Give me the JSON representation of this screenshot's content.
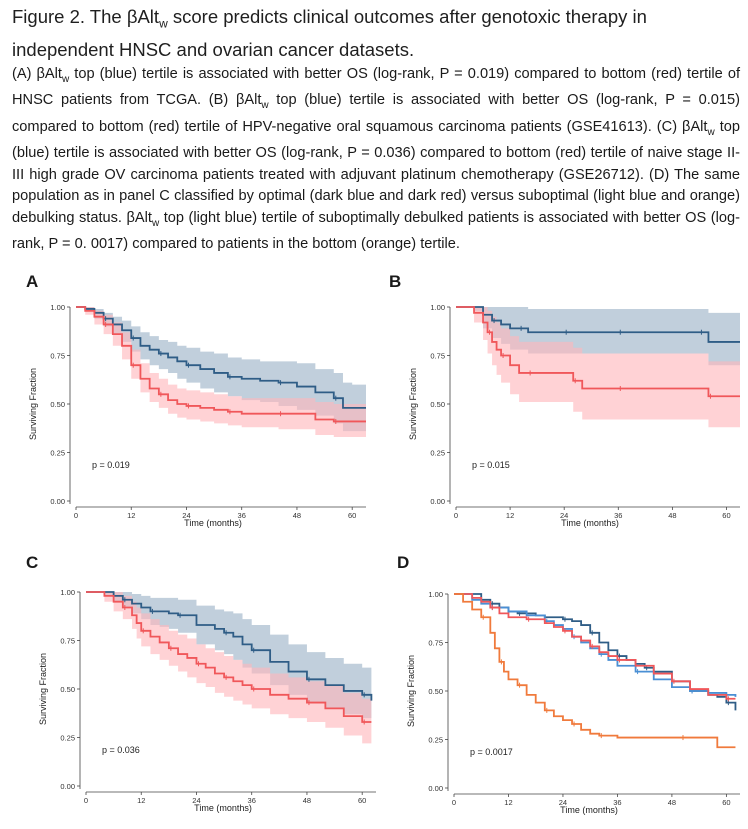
{
  "figure": {
    "title": "Figure 2. The βAltw score predicts clinical outcomes after genotoxic therapy in independent HNSC and ovarian cancer datasets.",
    "title_parts": {
      "pre": "Figure 2. The βAlt",
      "sub": "w",
      "post": " score predicts clinical outcomes after genotoxic therapy in independent HNSC and ovarian cancer datasets."
    },
    "caption_segments": [
      {
        "t": "(A) βAlt"
      },
      {
        "sub": "w"
      },
      {
        "t": " top (blue) tertile is associated with better OS (log-rank, P = 0.019) compared to bottom (red) tertile of HNSC patients from TCGA. (B) βAlt"
      },
      {
        "sub": "w"
      },
      {
        "t": " top (blue) tertile is associated with better OS (log-rank, P = 0.015) compared to bottom (red) tertile of HPV-negative oral squamous carcinoma patients (GSE41613). (C) βAlt"
      },
      {
        "sub": "w"
      },
      {
        "t": " top (blue) tertile is associated with better OS (log-rank, P = 0.036) compared to bottom (red) tertile of naive stage II-III high grade OV carcinoma patients treated with adjuvant platinum chemotherapy (GSE26712). (D) The same population as in panel C classified by optimal (dark blue and dark red) versus suboptimal (light blue and orange) debulking status. βAlt"
      },
      {
        "sub": "w"
      },
      {
        "t": " top (light blue) tertile of suboptimally debulked patients is associated with better OS (log-rank, P = 0. 0017)  compared to patients in the bottom (orange) tertile."
      }
    ]
  },
  "colors": {
    "dark_blue": "#2f5d86",
    "red": "#f0575a",
    "light_blue": "#4a8fd4",
    "orange": "#f07a3c",
    "blue_band": "#a9bccf",
    "red_band": "#ffb7bb"
  },
  "chart_data": [
    {
      "panel": "A",
      "type": "line",
      "xlabel": "Time (months)",
      "ylabel": "Surviving Fraction",
      "xlim": [
        0,
        63
      ],
      "ylim": [
        0,
        1
      ],
      "xticks": [
        "0",
        "12",
        "24",
        "36",
        "48",
        "60"
      ],
      "yticks": [
        "0.00",
        "0.25",
        "0.50",
        "0.75",
        "1.00"
      ],
      "annotation": "p = 0.019",
      "grid": false,
      "legend": "none",
      "series": [
        {
          "color": "#2f5d86",
          "band": true,
          "x": [
            0,
            2,
            4,
            6,
            8,
            10,
            12,
            14,
            16,
            18,
            20,
            22,
            24,
            27,
            30,
            33,
            36,
            40,
            44,
            48,
            52,
            56,
            58,
            60,
            63
          ],
          "y": [
            1.0,
            0.99,
            0.97,
            0.94,
            0.91,
            0.88,
            0.84,
            0.8,
            0.78,
            0.76,
            0.74,
            0.72,
            0.7,
            0.68,
            0.66,
            0.64,
            0.63,
            0.62,
            0.61,
            0.59,
            0.56,
            0.53,
            0.48,
            0.48,
            0.48
          ],
          "lower": [
            1.0,
            0.98,
            0.94,
            0.9,
            0.86,
            0.82,
            0.77,
            0.73,
            0.7,
            0.68,
            0.66,
            0.63,
            0.61,
            0.58,
            0.56,
            0.54,
            0.52,
            0.51,
            0.49,
            0.47,
            0.44,
            0.4,
            0.36,
            0.36,
            0.36
          ],
          "upper": [
            1.0,
            1.0,
            0.99,
            0.97,
            0.95,
            0.93,
            0.9,
            0.87,
            0.85,
            0.83,
            0.82,
            0.8,
            0.79,
            0.77,
            0.76,
            0.74,
            0.73,
            0.72,
            0.72,
            0.71,
            0.68,
            0.66,
            0.61,
            0.6,
            0.6
          ]
        },
        {
          "color": "#f0575a",
          "band": true,
          "x": [
            0,
            2,
            4,
            6,
            8,
            10,
            12,
            14,
            16,
            18,
            20,
            22,
            24,
            27,
            30,
            33,
            36,
            40,
            44,
            48,
            52,
            56,
            60,
            63
          ],
          "y": [
            1.0,
            0.98,
            0.95,
            0.91,
            0.86,
            0.8,
            0.7,
            0.63,
            0.58,
            0.55,
            0.52,
            0.5,
            0.49,
            0.48,
            0.47,
            0.46,
            0.45,
            0.45,
            0.45,
            0.45,
            0.42,
            0.41,
            0.41,
            0.41
          ],
          "lower": [
            1.0,
            0.96,
            0.91,
            0.86,
            0.8,
            0.73,
            0.63,
            0.56,
            0.51,
            0.48,
            0.45,
            0.43,
            0.42,
            0.41,
            0.4,
            0.39,
            0.38,
            0.38,
            0.37,
            0.37,
            0.34,
            0.33,
            0.33,
            0.33
          ],
          "upper": [
            1.0,
            1.0,
            0.98,
            0.96,
            0.92,
            0.87,
            0.78,
            0.71,
            0.66,
            0.63,
            0.6,
            0.58,
            0.57,
            0.56,
            0.55,
            0.54,
            0.53,
            0.53,
            0.53,
            0.53,
            0.51,
            0.5,
            0.5,
            0.5
          ]
        }
      ]
    },
    {
      "panel": "B",
      "type": "line",
      "xlabel": "Time (months)",
      "ylabel": "Surviving Fraction",
      "xlim": [
        0,
        63
      ],
      "ylim": [
        0,
        1
      ],
      "xticks": [
        "0",
        "12",
        "24",
        "36",
        "48",
        "60"
      ],
      "yticks": [
        "0.00",
        "0.25",
        "0.50",
        "0.75",
        "1.00"
      ],
      "annotation": "p = 0.015",
      "grid": false,
      "legend": "none",
      "series": [
        {
          "color": "#2f5d86",
          "band": true,
          "x": [
            0,
            4,
            6,
            8,
            10,
            12,
            14,
            16,
            20,
            24,
            28,
            32,
            36,
            40,
            48,
            54,
            56,
            60,
            63
          ],
          "y": [
            1.0,
            1.0,
            0.96,
            0.93,
            0.91,
            0.89,
            0.89,
            0.87,
            0.87,
            0.87,
            0.87,
            0.87,
            0.87,
            0.87,
            0.87,
            0.87,
            0.82,
            0.82,
            0.82
          ],
          "lower": [
            1.0,
            0.98,
            0.89,
            0.84,
            0.81,
            0.78,
            0.78,
            0.76,
            0.76,
            0.76,
            0.76,
            0.76,
            0.76,
            0.76,
            0.76,
            0.76,
            0.7,
            0.7,
            0.7
          ],
          "upper": [
            1.0,
            1.0,
            1.0,
            1.0,
            1.0,
            1.0,
            1.0,
            0.99,
            0.99,
            0.99,
            0.99,
            0.99,
            0.99,
            0.99,
            0.99,
            0.99,
            0.97,
            0.97,
            0.97
          ]
        },
        {
          "color": "#f0575a",
          "band": true,
          "x": [
            0,
            4,
            6,
            7,
            8,
            9,
            10,
            12,
            14,
            16,
            20,
            24,
            26,
            28,
            30,
            36,
            40,
            48,
            56,
            60,
            63
          ],
          "y": [
            1.0,
            0.97,
            0.92,
            0.87,
            0.82,
            0.78,
            0.75,
            0.7,
            0.66,
            0.66,
            0.66,
            0.66,
            0.62,
            0.58,
            0.58,
            0.58,
            0.58,
            0.58,
            0.54,
            0.54,
            0.54
          ],
          "lower": [
            1.0,
            0.92,
            0.83,
            0.76,
            0.7,
            0.65,
            0.61,
            0.55,
            0.51,
            0.51,
            0.51,
            0.51,
            0.46,
            0.42,
            0.42,
            0.42,
            0.42,
            0.42,
            0.38,
            0.38,
            0.38
          ],
          "upper": [
            1.0,
            1.0,
            1.0,
            0.98,
            0.95,
            0.92,
            0.89,
            0.85,
            0.82,
            0.82,
            0.82,
            0.82,
            0.79,
            0.76,
            0.76,
            0.76,
            0.76,
            0.76,
            0.72,
            0.72,
            0.72
          ]
        }
      ]
    },
    {
      "panel": "C",
      "type": "line",
      "xlabel": "Time (months)",
      "ylabel": "Surviving Fraction",
      "xlim": [
        0,
        63
      ],
      "ylim": [
        0,
        1
      ],
      "xticks": [
        "0",
        "12",
        "24",
        "36",
        "48",
        "60"
      ],
      "yticks": [
        "0.00",
        "0.25",
        "0.50",
        "0.75",
        "1.00"
      ],
      "annotation": "p = 0.036",
      "grid": false,
      "legend": "none",
      "series": [
        {
          "color": "#2f5d86",
          "band": true,
          "x": [
            0,
            4,
            6,
            8,
            10,
            12,
            14,
            16,
            18,
            20,
            24,
            28,
            30,
            32,
            34,
            36,
            40,
            44,
            48,
            52,
            56,
            60,
            62
          ],
          "y": [
            1.0,
            1.0,
            0.98,
            0.96,
            0.94,
            0.92,
            0.9,
            0.9,
            0.89,
            0.88,
            0.83,
            0.81,
            0.79,
            0.77,
            0.73,
            0.7,
            0.64,
            0.59,
            0.55,
            0.52,
            0.49,
            0.47,
            0.44
          ],
          "lower": [
            1.0,
            0.98,
            0.95,
            0.92,
            0.89,
            0.86,
            0.83,
            0.82,
            0.81,
            0.79,
            0.73,
            0.7,
            0.68,
            0.65,
            0.61,
            0.58,
            0.52,
            0.47,
            0.43,
            0.4,
            0.37,
            0.35,
            0.32
          ],
          "upper": [
            1.0,
            1.0,
            1.0,
            1.0,
            0.99,
            0.98,
            0.97,
            0.97,
            0.97,
            0.96,
            0.93,
            0.91,
            0.9,
            0.89,
            0.86,
            0.83,
            0.78,
            0.73,
            0.69,
            0.66,
            0.63,
            0.61,
            0.58
          ]
        },
        {
          "color": "#f0575a",
          "band": true,
          "x": [
            0,
            4,
            6,
            8,
            10,
            11,
            12,
            14,
            16,
            18,
            20,
            22,
            24,
            26,
            28,
            30,
            32,
            34,
            36,
            40,
            44,
            48,
            52,
            56,
            60,
            62
          ],
          "y": [
            1.0,
            0.98,
            0.95,
            0.92,
            0.88,
            0.84,
            0.8,
            0.77,
            0.74,
            0.71,
            0.68,
            0.66,
            0.63,
            0.61,
            0.58,
            0.56,
            0.54,
            0.52,
            0.5,
            0.47,
            0.45,
            0.43,
            0.4,
            0.36,
            0.33,
            0.33
          ],
          "lower": [
            1.0,
            0.95,
            0.9,
            0.86,
            0.81,
            0.76,
            0.72,
            0.68,
            0.65,
            0.62,
            0.59,
            0.56,
            0.53,
            0.51,
            0.48,
            0.46,
            0.44,
            0.42,
            0.4,
            0.37,
            0.35,
            0.33,
            0.3,
            0.26,
            0.22,
            0.22
          ],
          "upper": [
            1.0,
            1.0,
            1.0,
            0.98,
            0.95,
            0.92,
            0.89,
            0.86,
            0.83,
            0.8,
            0.78,
            0.76,
            0.73,
            0.71,
            0.69,
            0.67,
            0.65,
            0.63,
            0.61,
            0.58,
            0.56,
            0.54,
            0.52,
            0.48,
            0.45,
            0.45
          ]
        }
      ]
    },
    {
      "panel": "D",
      "type": "line",
      "xlabel": "Time (months)",
      "ylabel": "Surviving Fraction",
      "xlim": [
        0,
        63
      ],
      "ylim": [
        0,
        1
      ],
      "xticks": [
        "0",
        "12",
        "24",
        "36",
        "48",
        "60"
      ],
      "yticks": [
        "0.00",
        "0.25",
        "0.50",
        "0.75",
        "1.00"
      ],
      "annotation": "p = 0.0017",
      "grid": false,
      "legend": "none",
      "series": [
        {
          "color": "#2f5d86",
          "band": false,
          "x": [
            0,
            4,
            6,
            8,
            10,
            12,
            14,
            18,
            20,
            24,
            26,
            28,
            30,
            32,
            34,
            36,
            38,
            40,
            42,
            44,
            48,
            52,
            56,
            58,
            60,
            62
          ],
          "y": [
            1.0,
            1.0,
            0.97,
            0.95,
            0.93,
            0.91,
            0.9,
            0.89,
            0.88,
            0.87,
            0.86,
            0.84,
            0.8,
            0.75,
            0.71,
            0.68,
            0.66,
            0.64,
            0.62,
            0.6,
            0.55,
            0.5,
            0.48,
            0.47,
            0.44,
            0.4
          ]
        },
        {
          "color": "#4a8fd4",
          "band": false,
          "x": [
            0,
            4,
            6,
            8,
            12,
            16,
            20,
            22,
            24,
            26,
            28,
            30,
            32,
            34,
            36,
            40,
            44,
            48,
            52,
            56,
            60,
            62
          ],
          "y": [
            1.0,
            0.97,
            0.95,
            0.93,
            0.91,
            0.89,
            0.86,
            0.84,
            0.82,
            0.78,
            0.75,
            0.72,
            0.69,
            0.66,
            0.63,
            0.6,
            0.56,
            0.52,
            0.5,
            0.49,
            0.48,
            0.47
          ]
        },
        {
          "color": "#f0575a",
          "band": false,
          "x": [
            0,
            4,
            6,
            8,
            10,
            12,
            16,
            20,
            22,
            24,
            26,
            28,
            30,
            32,
            34,
            36,
            40,
            44,
            48,
            52,
            56,
            60,
            62
          ],
          "y": [
            1.0,
            0.98,
            0.96,
            0.93,
            0.9,
            0.88,
            0.87,
            0.85,
            0.83,
            0.81,
            0.78,
            0.76,
            0.73,
            0.7,
            0.68,
            0.66,
            0.63,
            0.59,
            0.55,
            0.51,
            0.48,
            0.46,
            0.46
          ]
        },
        {
          "color": "#f07a3c",
          "band": false,
          "x": [
            0,
            2,
            4,
            6,
            8,
            9,
            10,
            11,
            12,
            14,
            16,
            18,
            20,
            22,
            24,
            26,
            28,
            30,
            32,
            36,
            40,
            50,
            56,
            58,
            62
          ],
          "y": [
            1.0,
            0.96,
            0.92,
            0.88,
            0.8,
            0.72,
            0.65,
            0.6,
            0.56,
            0.53,
            0.48,
            0.44,
            0.4,
            0.37,
            0.35,
            0.33,
            0.3,
            0.28,
            0.27,
            0.26,
            0.26,
            0.26,
            0.26,
            0.21,
            0.21
          ]
        }
      ]
    }
  ]
}
